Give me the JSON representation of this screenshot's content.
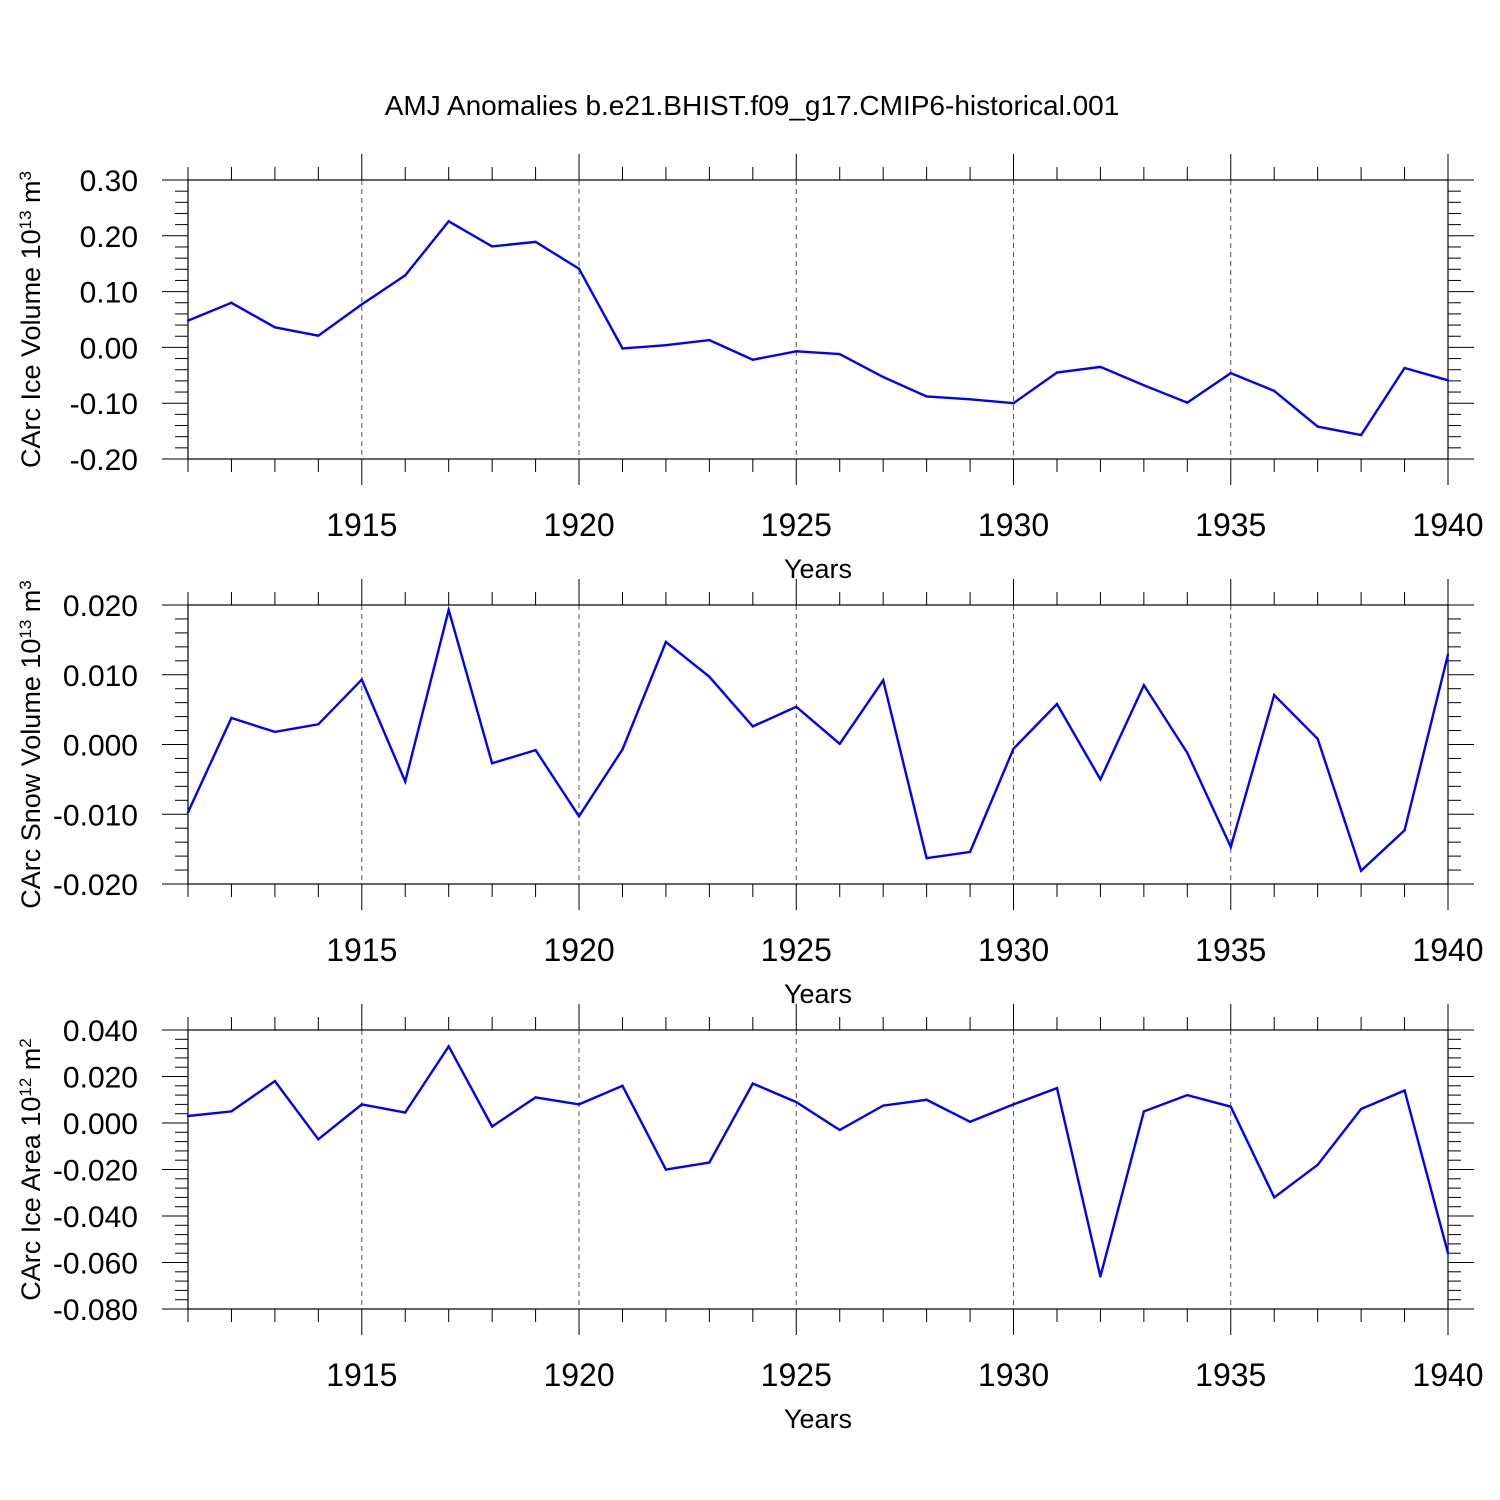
{
  "title": "AMJ Anomalies b.e21.BHIST.f09_g17.CMIP6-historical.001",
  "line_color": "#0000ff",
  "chart_data": [
    {
      "type": "line",
      "ylabel_base": "CArc Ice Volume 10",
      "ylabel_exp": "13",
      "ylabel_unit": " m",
      "ylabel_unit_exp": "3",
      "xlabel": "Years",
      "xlim": [
        1911,
        1940
      ],
      "ylim": [
        -0.2,
        0.3
      ],
      "yticks": [
        -0.2,
        -0.1,
        0.0,
        0.1,
        0.2,
        0.3
      ],
      "ytick_labels": [
        "-0.20",
        "-0.10",
        "0.00",
        "0.10",
        "0.20",
        "0.30"
      ],
      "xticks": [
        1915,
        1920,
        1925,
        1930,
        1935,
        1940
      ],
      "xtick_labels": [
        "1915",
        "1920",
        "1925",
        "1930",
        "1935",
        "1940"
      ],
      "x": [
        1911,
        1912,
        1913,
        1914,
        1915,
        1916,
        1917,
        1918,
        1919,
        1920,
        1921,
        1922,
        1923,
        1924,
        1925,
        1926,
        1927,
        1928,
        1929,
        1930,
        1931,
        1932,
        1933,
        1934,
        1935,
        1936,
        1937,
        1938,
        1939,
        1940
      ],
      "values": [
        0.048,
        0.08,
        0.036,
        0.021,
        0.077,
        0.129,
        0.226,
        0.181,
        0.189,
        0.141,
        -0.002,
        0.004,
        0.013,
        -0.022,
        -0.007,
        -0.012,
        -0.053,
        -0.088,
        -0.093,
        -0.1,
        -0.045,
        -0.035,
        -0.068,
        -0.099,
        -0.046,
        -0.078,
        -0.142,
        -0.157,
        -0.037,
        -0.059
      ]
    },
    {
      "type": "line",
      "ylabel_base": "CArc Snow Volume 10",
      "ylabel_exp": "13",
      "ylabel_unit": " m",
      "ylabel_unit_exp": "3",
      "xlabel": "Years",
      "xlim": [
        1911,
        1940
      ],
      "ylim": [
        -0.02,
        0.02
      ],
      "yticks": [
        -0.02,
        -0.01,
        0.0,
        0.01,
        0.02
      ],
      "ytick_labels": [
        "-0.020",
        "-0.010",
        "0.000",
        "0.010",
        "0.020"
      ],
      "xticks": [
        1915,
        1920,
        1925,
        1930,
        1935,
        1940
      ],
      "xtick_labels": [
        "1915",
        "1920",
        "1925",
        "1930",
        "1935",
        "1940"
      ],
      "x": [
        1911,
        1912,
        1913,
        1914,
        1915,
        1916,
        1917,
        1918,
        1919,
        1920,
        1921,
        1922,
        1923,
        1924,
        1925,
        1926,
        1927,
        1928,
        1929,
        1930,
        1931,
        1932,
        1933,
        1934,
        1935,
        1936,
        1937,
        1938,
        1939,
        1940
      ],
      "values": [
        -0.0097,
        0.0038,
        0.0018,
        0.0029,
        0.0093,
        -0.0053,
        0.0193,
        -0.0027,
        -0.0008,
        -0.0103,
        -0.0007,
        0.0147,
        0.0097,
        0.0026,
        0.0054,
        0.0001,
        0.0092,
        -0.0163,
        -0.0154,
        -0.0006,
        0.0058,
        -0.005,
        0.0085,
        -0.0012,
        -0.0147,
        0.0071,
        0.0008,
        -0.0181,
        -0.0123,
        0.0129
      ]
    },
    {
      "type": "line",
      "ylabel_base": "CArc Ice Area 10",
      "ylabel_exp": "12",
      "ylabel_unit": " m",
      "ylabel_unit_exp": "2",
      "xlabel": "Years",
      "xlim": [
        1911,
        1940
      ],
      "ylim": [
        -0.08,
        0.04
      ],
      "yticks": [
        -0.08,
        -0.06,
        -0.04,
        -0.02,
        0.0,
        0.02,
        0.04
      ],
      "ytick_labels": [
        "-0.080",
        "-0.060",
        "-0.040",
        "-0.020",
        "0.000",
        "0.020",
        "0.040"
      ],
      "xticks": [
        1915,
        1920,
        1925,
        1930,
        1935,
        1940
      ],
      "xtick_labels": [
        "1915",
        "1920",
        "1925",
        "1930",
        "1935",
        "1940"
      ],
      "x": [
        1911,
        1912,
        1913,
        1914,
        1915,
        1916,
        1917,
        1918,
        1919,
        1920,
        1921,
        1922,
        1923,
        1924,
        1925,
        1926,
        1927,
        1928,
        1929,
        1930,
        1931,
        1932,
        1933,
        1934,
        1935,
        1936,
        1937,
        1938,
        1939,
        1940
      ],
      "values": [
        0.003,
        0.005,
        0.018,
        -0.007,
        0.008,
        0.0045,
        0.033,
        -0.0015,
        0.011,
        0.008,
        0.016,
        -0.02,
        -0.017,
        0.017,
        0.009,
        -0.003,
        0.0075,
        0.01,
        0.0005,
        0.008,
        0.015,
        -0.066,
        0.005,
        0.012,
        0.007,
        -0.032,
        -0.018,
        0.006,
        0.014,
        -0.056
      ]
    }
  ]
}
